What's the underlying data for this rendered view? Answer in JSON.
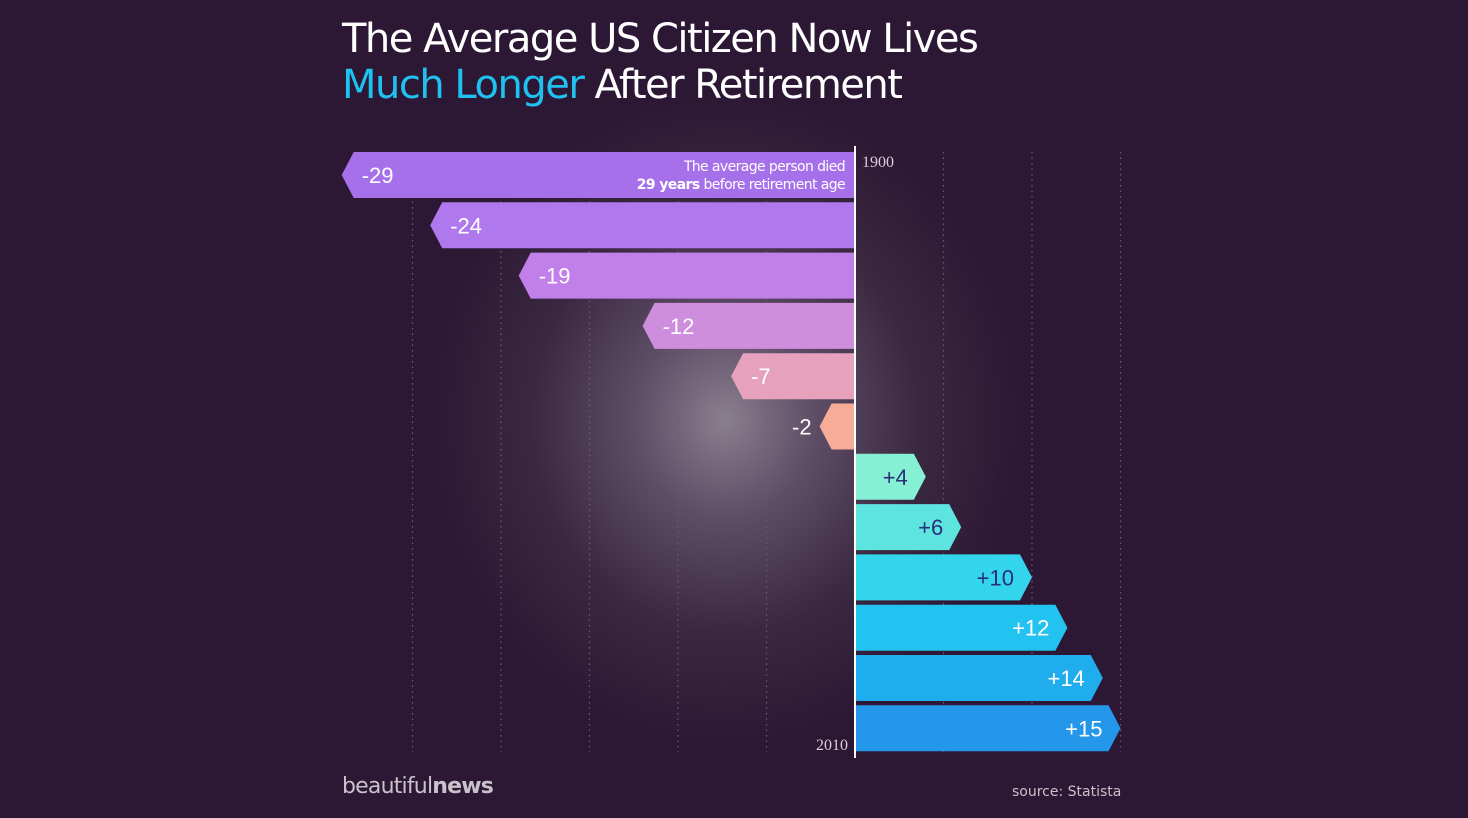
{
  "title": {
    "line1": "The Average US Citizen Now Lives",
    "line2_accent": "Much Longer",
    "line2_rest": " After Retirement"
  },
  "chart_data": {
    "type": "bar",
    "orientation": "horizontal",
    "categories": [
      "",
      "",
      "",
      "",
      "",
      "",
      "",
      "",
      "",
      "",
      "",
      ""
    ],
    "values": [
      -29,
      -24,
      -19,
      -12,
      -7,
      -2,
      4,
      6,
      10,
      12,
      14,
      15
    ],
    "value_labels": [
      "-29",
      "-24",
      "-19",
      "-12",
      "-7",
      "-2",
      "+4",
      "+6",
      "+10",
      "+12",
      "+14",
      "+15"
    ],
    "axis_start_label": "1900",
    "axis_end_label": "2010",
    "xlim": [
      -29,
      15
    ],
    "grid": true,
    "annotation": {
      "line1": "The average person died",
      "line2_bold": "29 years",
      "line2_rest": " before retirement age"
    },
    "colors": [
      "#a670ea",
      "#af78ec",
      "#c07fe9",
      "#cf8dde",
      "#e6a2bd",
      "#f7ac97",
      "#86f0d4",
      "#5de4df",
      "#32d5ec",
      "#22c3f0",
      "#1fadee",
      "#2597ea"
    ],
    "label_colors": [
      "#ffffff",
      "#ffffff",
      "#ffffff",
      "#ffffff",
      "#ffffff",
      "#ffffff",
      "#2a2f7a",
      "#2a2f7a",
      "#2a2f7a",
      "#ffffff",
      "#ffffff",
      "#ffffff"
    ]
  },
  "footer": {
    "brand_light": "beautiful",
    "brand_bold": "news",
    "source": "source: Statista"
  }
}
